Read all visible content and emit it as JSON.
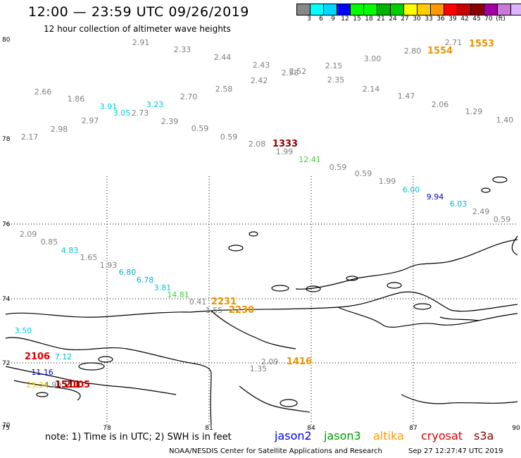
{
  "header": {
    "title": "12:00 — 23:59 UTC 09/26/2019",
    "subtitle": "12 hour collection of altimeter wave heights"
  },
  "color_scale": {
    "swatches": [
      "#888888",
      "#00ffff",
      "#00d7ff",
      "#0000ff",
      "#00ff00",
      "#00ff00",
      "#00b400",
      "#00d000",
      "#ffff00",
      "#ffcc00",
      "#ff9900",
      "#ff0000",
      "#c80000",
      "#8b0000",
      "#a000a0",
      "#c87ad8",
      "#dcb4ff",
      "#000000"
    ],
    "labels": [
      "3",
      "6",
      "9",
      "12",
      "15",
      "18",
      "21",
      "24",
      "27",
      "30",
      "33",
      "36",
      "39",
      "42",
      "45",
      "70",
      "(ft)"
    ]
  },
  "axes": {
    "lat_ticks": [
      "80",
      "78",
      "76",
      "74",
      "72",
      "70"
    ],
    "lon_ticks": [
      "75",
      "78",
      "81",
      "84",
      "87",
      "90"
    ]
  },
  "wave_heights": [
    {
      "t": "2.91",
      "c": "#808080"
    },
    {
      "t": "2.33",
      "c": "#808080"
    },
    {
      "t": "2.44",
      "c": "#808080"
    },
    {
      "t": "2.43",
      "c": "#808080"
    },
    {
      "t": "2.52",
      "c": "#808080"
    },
    {
      "t": "2.58",
      "c": "#808080"
    },
    {
      "t": "2.15",
      "c": "#808080"
    },
    {
      "t": "3.00",
      "c": "#808080"
    },
    {
      "t": "2.80",
      "c": "#808080"
    },
    {
      "t": "2.71",
      "c": "#808080"
    },
    {
      "t": "1553",
      "c": "#e69500"
    },
    {
      "t": "1554",
      "c": "#e69500"
    },
    {
      "t": "2.66",
      "c": "#808080"
    },
    {
      "t": "1.86",
      "c": "#808080"
    },
    {
      "t": "3.91",
      "c": "#00c8d8"
    },
    {
      "t": "3.05",
      "c": "#00c8d8"
    },
    {
      "t": "2.73",
      "c": "#808080"
    },
    {
      "t": "3.23",
      "c": "#00c8d8"
    },
    {
      "t": "2.70",
      "c": "#808080"
    },
    {
      "t": "2.58",
      "c": "#808080"
    },
    {
      "t": "2.42",
      "c": "#808080"
    },
    {
      "t": "2.35",
      "c": "#808080"
    },
    {
      "t": "2.14",
      "c": "#808080"
    },
    {
      "t": "1.47",
      "c": "#808080"
    },
    {
      "t": "2.06",
      "c": "#808080"
    },
    {
      "t": "1.29",
      "c": "#808080"
    },
    {
      "t": "1.40",
      "c": "#808080"
    },
    {
      "t": "2.97",
      "c": "#808080"
    },
    {
      "t": "2.98",
      "c": "#808080"
    },
    {
      "t": "2.39",
      "c": "#808080"
    },
    {
      "t": "2.17",
      "c": "#808080"
    },
    {
      "t": "0.59",
      "c": "#808080"
    },
    {
      "t": "0.59",
      "c": "#808080"
    },
    {
      "t": "2.08",
      "c": "#808080"
    },
    {
      "t": "1333",
      "c": "#8b0000"
    },
    {
      "t": "1.99",
      "c": "#808080"
    },
    {
      "t": "12.41",
      "c": "#3cd03c"
    },
    {
      "t": "0.59",
      "c": "#808080"
    },
    {
      "t": "0.59",
      "c": "#808080"
    },
    {
      "t": "1.99",
      "c": "#808080"
    },
    {
      "t": "6.00",
      "c": "#00c8d8"
    },
    {
      "t": "9.94",
      "c": "#0000c8"
    },
    {
      "t": "6.03",
      "c": "#00b4d8"
    },
    {
      "t": "2.49",
      "c": "#808080"
    },
    {
      "t": "0.59",
      "c": "#808080"
    },
    {
      "t": "2.09",
      "c": "#808080"
    },
    {
      "t": "0.85",
      "c": "#808080"
    },
    {
      "t": "4.83",
      "c": "#00c8d8"
    },
    {
      "t": "1.65",
      "c": "#808080"
    },
    {
      "t": "1.93",
      "c": "#808080"
    },
    {
      "t": "6.80",
      "c": "#00b4d8"
    },
    {
      "t": "6.78",
      "c": "#00b4d8"
    },
    {
      "t": "3.81",
      "c": "#00c8d8"
    },
    {
      "t": "14.81",
      "c": "#3cd03c"
    },
    {
      "t": "0.41",
      "c": "#808080"
    },
    {
      "t": "2231",
      "c": "#e69500"
    },
    {
      "t": "1.55",
      "c": "#808080"
    },
    {
      "t": "2230",
      "c": "#e69500"
    },
    {
      "t": "3.50",
      "c": "#00c8d8"
    },
    {
      "t": "2106",
      "c": "#dd0000"
    },
    {
      "t": "7.12",
      "c": "#00b4d8"
    },
    {
      "t": "2.09",
      "c": "#808080"
    },
    {
      "t": "1416",
      "c": "#e69500"
    },
    {
      "t": "1.35",
      "c": "#808080"
    },
    {
      "t": "11.16",
      "c": "#0000c8"
    },
    {
      "t": "23.34",
      "c": "#e6c800"
    },
    {
      "t": "4.99",
      "c": "#808080"
    },
    {
      "t": "1511",
      "c": "#8b0000"
    },
    {
      "t": "2105",
      "c": "#dd0000"
    }
  ],
  "legend": {
    "note": "note:  1) Time is in UTC;  2) SWH is in feet",
    "satellites": [
      {
        "name": "jason2",
        "color": "#0000ee"
      },
      {
        "name": "jason3",
        "color": "#00a000"
      },
      {
        "name": "altika",
        "color": "#ff9900"
      },
      {
        "name": "cryosat",
        "color": "#dd0000"
      },
      {
        "name": "s3a",
        "color": "#8b0000"
      }
    ]
  },
  "footer": {
    "agency": "NOAA/NESDIS Center for Satellite Applications and Research",
    "timestamp": "Sep 27 12:27:47 UTC 2019"
  }
}
